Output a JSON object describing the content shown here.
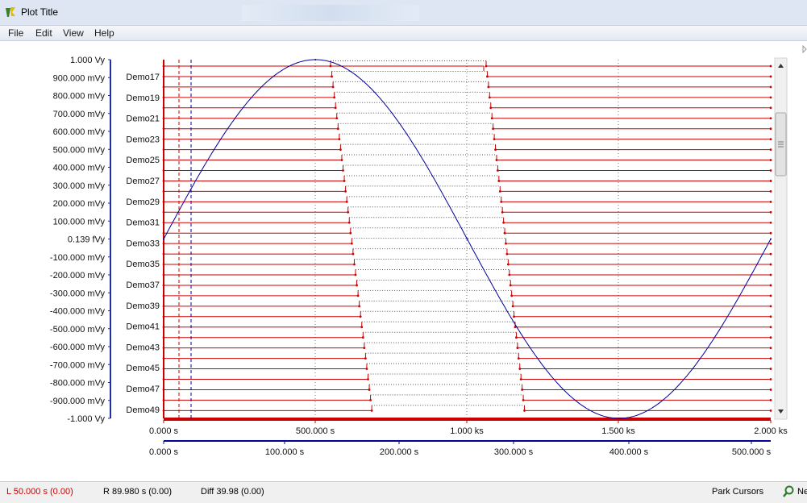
{
  "window": {
    "title": "Plot Title"
  },
  "menu": [
    "File",
    "Edit",
    "View",
    "Help"
  ],
  "y_axis": {
    "labels": [
      "1.000  Vy",
      "900.000 mVy",
      "800.000 mVy",
      "700.000 mVy",
      "600.000 mVy",
      "500.000 mVy",
      "400.000 mVy",
      "300.000 mVy",
      "200.000 mVy",
      "100.000 mVy",
      "0.139  fVy",
      "-100.000 mVy",
      "-200.000 mVy",
      "-300.000 mVy",
      "-400.000 mVy",
      "-500.000 mVy",
      "-600.000 mVy",
      "-700.000 mVy",
      "-800.000 mVy",
      "-900.000 mVy",
      "-1.000  Vy"
    ]
  },
  "channels": [
    "Demo17",
    "Demo19",
    "Demo21",
    "Demo23",
    "Demo25",
    "Demo27",
    "Demo29",
    "Demo31",
    "Demo33",
    "Demo35",
    "Demo37",
    "Demo39",
    "Demo41",
    "Demo43",
    "Demo45",
    "Demo47",
    "Demo49"
  ],
  "x_axis_top": {
    "labels": [
      "0.000  s",
      "500.000  s",
      "1.000  ks",
      "1.500  ks",
      "2.000  ks"
    ]
  },
  "x_axis_bottom": {
    "labels": [
      "0.000  s",
      "100.000  s",
      "200.000  s",
      "300.000  s",
      "400.000  s",
      "500.000  s"
    ]
  },
  "status": {
    "left_cursor": "L 50.000  s (0.00)",
    "right_cursor": "R 89.980  s (0.00)",
    "diff": "Diff  39.98 (0.00)",
    "park": "Park Cursors",
    "trailing": "Ne"
  },
  "colors": {
    "digital": "#cc0000",
    "analog": "#000099",
    "axis": "#2030a0"
  },
  "chart_data": {
    "type": "line",
    "series": [
      {
        "x": [
          0,
          500,
          1000,
          1500,
          2000
        ],
        "y": [
          0,
          1,
          0,
          -1,
          0
        ]
      }
    ],
    "xlim": [
      0,
      2000
    ],
    "ylim": [
      -1,
      1
    ],
    "grid": true
  }
}
